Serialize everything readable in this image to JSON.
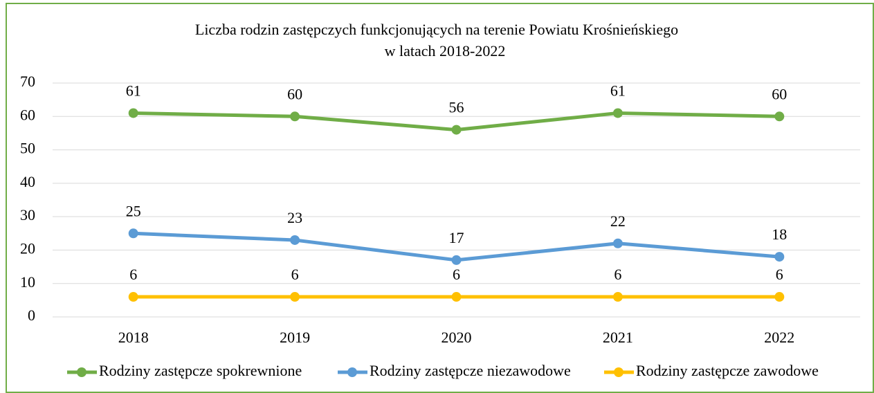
{
  "chart_data": {
    "type": "line",
    "title": "Liczba rodzin zastępczych funkcjonujących na terenie Powiatu Krośnieńskiego",
    "subtitle": "w latach  2018-2022",
    "categories": [
      "2018",
      "2019",
      "2020",
      "2021",
      "2022"
    ],
    "series": [
      {
        "name": "Rodziny zastępcze spokrewnione",
        "color": "#70ad47",
        "values": [
          61,
          60,
          56,
          61,
          60
        ]
      },
      {
        "name": "Rodziny zastępcze niezawodowe",
        "color": "#5b9bd5",
        "values": [
          25,
          23,
          17,
          22,
          18
        ]
      },
      {
        "name": "Rodziny zastępcze zawodowe",
        "color": "#ffc000",
        "values": [
          6,
          6,
          6,
          6,
          6
        ]
      }
    ],
    "ylim": [
      0,
      70
    ],
    "yticks": [
      0,
      10,
      20,
      30,
      40,
      50,
      60,
      70
    ],
    "grid": true,
    "legend": "bottom"
  }
}
